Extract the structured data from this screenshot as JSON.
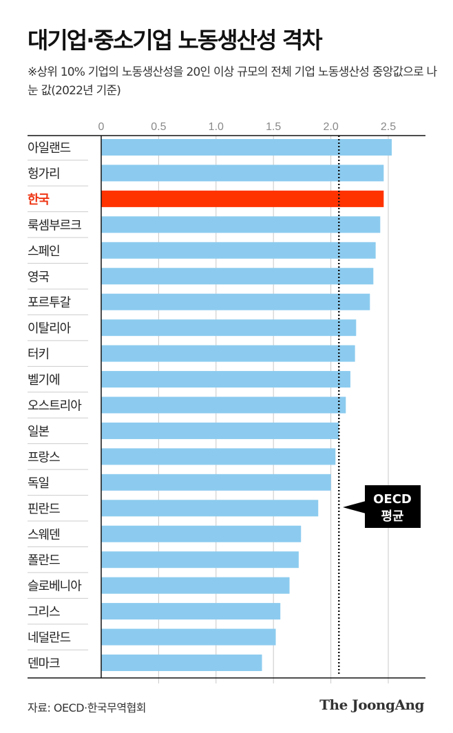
{
  "title": "대기업·중소기업 노동생산성 격차",
  "subtitle": "※상위 10% 기업의 노동생산성을 20인 이상 규모의 전체 기업 노동생산성 중앙값으로 나눈 값(2022년 기준)",
  "source": "자료: OECD·한국무역협회",
  "logo": "The JoongAng",
  "chart_data": {
    "type": "bar",
    "orientation": "horizontal",
    "categories": [
      "아일랜드",
      "헝가리",
      "한국",
      "룩셈부르크",
      "스페인",
      "영국",
      "포르투갈",
      "이탈리아",
      "터키",
      "벨기에",
      "오스트리아",
      "일본",
      "프랑스",
      "독일",
      "핀란드",
      "스웨덴",
      "폴란드",
      "슬로베니아",
      "그리스",
      "네덜란드",
      "덴마크"
    ],
    "values": [
      2.53,
      2.46,
      2.46,
      2.43,
      2.39,
      2.37,
      2.34,
      2.22,
      2.21,
      2.17,
      2.13,
      2.07,
      2.04,
      2.0,
      1.89,
      1.74,
      1.72,
      1.64,
      1.56,
      1.52,
      1.4
    ],
    "highlight": "한국",
    "xticks": [
      "0",
      "0.5",
      "1.0",
      "1.5",
      "2.0",
      "2.5"
    ],
    "xlim": [
      0,
      2.8
    ],
    "grid": true,
    "reference_line": {
      "value": 2.07,
      "label_line1": "OECD",
      "label_line2": "평균"
    },
    "colors": {
      "bar": "#8ccbef",
      "highlight": "#ff3300",
      "highlight_text": "#ee3311"
    }
  }
}
